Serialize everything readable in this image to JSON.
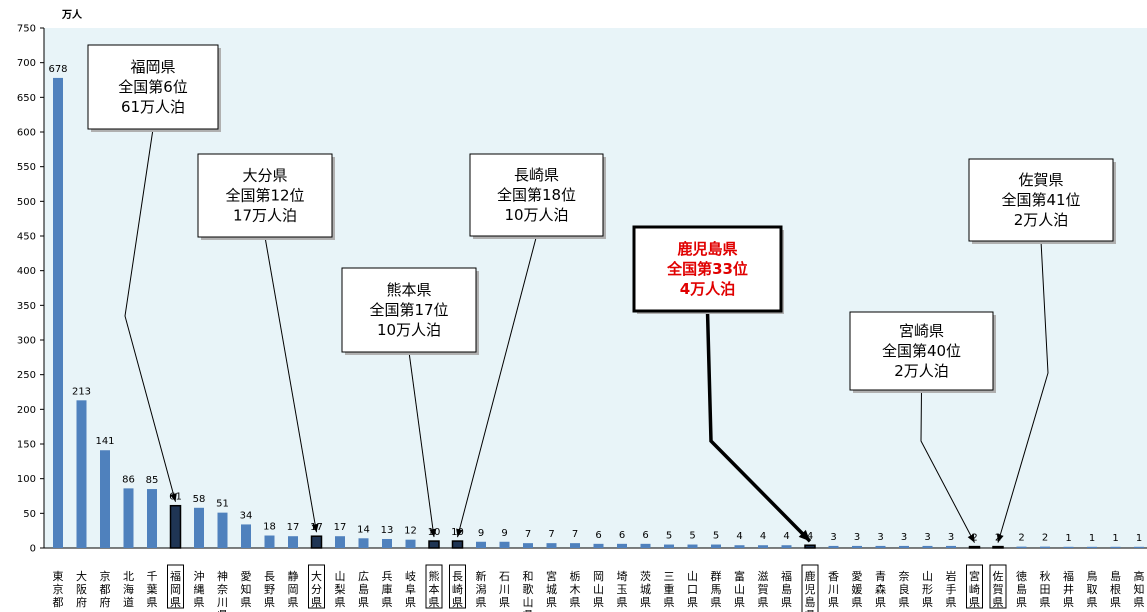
{
  "chart_data": {
    "type": "bar",
    "unit_label": "万人",
    "ylim": [
      0,
      750
    ],
    "yticks": [
      0,
      50,
      100,
      150,
      200,
      250,
      300,
      350,
      400,
      450,
      500,
      550,
      600,
      650,
      700,
      750
    ],
    "categories": [
      "東京都",
      "大阪府",
      "京都府",
      "北海道",
      "千葉県",
      "福岡県",
      "沖縄県",
      "神奈川県",
      "愛知県",
      "長野県",
      "静岡県",
      "大分県",
      "山梨県",
      "広島県",
      "兵庫県",
      "岐阜県",
      "熊本県",
      "長崎県",
      "新潟県",
      "石川県",
      "和歌山県",
      "宮城県",
      "栃木県",
      "岡山県",
      "埼玉県",
      "茨城県",
      "三重県",
      "山口県",
      "群馬県",
      "富山県",
      "滋賀県",
      "福島県",
      "鹿児島県",
      "香川県",
      "愛媛県",
      "青森県",
      "奈良県",
      "山形県",
      "岩手県",
      "宮崎県",
      "佐賀県",
      "徳島県",
      "秋田県",
      "福井県",
      "鳥取県",
      "島根県",
      "高知県"
    ],
    "values": [
      678,
      213,
      141,
      86,
      85,
      61,
      58,
      51,
      34,
      18,
      17,
      17,
      17,
      14,
      13,
      12,
      10,
      10,
      9,
      9,
      7,
      7,
      7,
      6,
      6,
      6,
      5,
      5,
      5,
      4,
      4,
      4,
      4,
      3,
      3,
      3,
      3,
      3,
      3,
      2,
      2,
      2,
      2,
      1,
      1,
      1,
      1
    ],
    "highlighted": [
      "福岡県",
      "大分県",
      "熊本県",
      "長崎県",
      "鹿児島県",
      "宮崎県",
      "佐賀県"
    ],
    "bar_color": "#4f81bd",
    "highlight_bar_color": "#1f3554",
    "plot_background": "#e8f4f8",
    "grid": false
  },
  "callouts": [
    {
      "target": "福岡県",
      "lines": [
        "福岡県",
        "全国第6位",
        "61万人泊"
      ],
      "style": "normal"
    },
    {
      "target": "大分県",
      "lines": [
        "大分県",
        "全国第12位",
        "17万人泊"
      ],
      "style": "normal"
    },
    {
      "target": "熊本県",
      "lines": [
        "熊本県",
        "全国第17位",
        "10万人泊"
      ],
      "style": "normal"
    },
    {
      "target": "長崎県",
      "lines": [
        "長崎県",
        "全国第18位",
        "10万人泊"
      ],
      "style": "normal"
    },
    {
      "target": "鹿児島県",
      "lines": [
        "鹿児島県",
        "全国第33位",
        "4万人泊"
      ],
      "style": "bold",
      "text_color": "#e00000"
    },
    {
      "target": "宮崎県",
      "lines": [
        "宮崎県",
        "全国第40位",
        "2万人泊"
      ],
      "style": "normal"
    },
    {
      "target": "佐賀県",
      "lines": [
        "佐賀県",
        "全国第41位",
        "2万人泊"
      ],
      "style": "normal"
    }
  ]
}
